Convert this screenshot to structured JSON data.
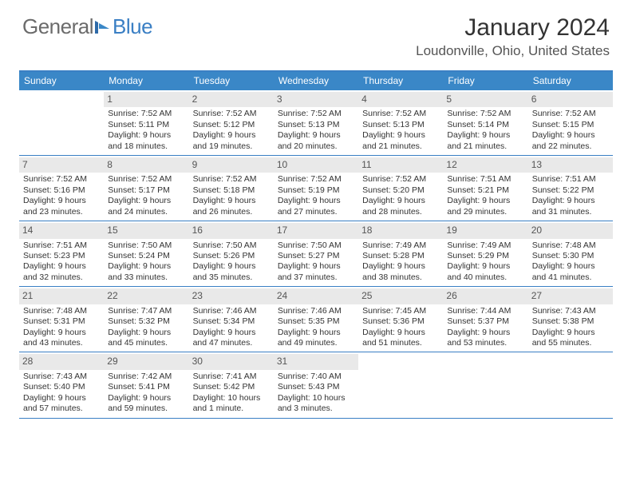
{
  "brand": {
    "part1": "General",
    "part2": "Blue"
  },
  "title": "January 2024",
  "location": "Loudonville, Ohio, United States",
  "colors": {
    "header_bar": "#3a87c7",
    "border": "#3a7fc4",
    "daynum_bg": "#e9e9e9",
    "text": "#333333",
    "logo_gray": "#6b6b6b",
    "logo_blue": "#3a7fc4"
  },
  "weekdays": [
    "Sunday",
    "Monday",
    "Tuesday",
    "Wednesday",
    "Thursday",
    "Friday",
    "Saturday"
  ],
  "weeks": [
    [
      {
        "n": "",
        "sr": "",
        "ss": "",
        "dl": ""
      },
      {
        "n": "1",
        "sr": "Sunrise: 7:52 AM",
        "ss": "Sunset: 5:11 PM",
        "dl": "Daylight: 9 hours and 18 minutes."
      },
      {
        "n": "2",
        "sr": "Sunrise: 7:52 AM",
        "ss": "Sunset: 5:12 PM",
        "dl": "Daylight: 9 hours and 19 minutes."
      },
      {
        "n": "3",
        "sr": "Sunrise: 7:52 AM",
        "ss": "Sunset: 5:13 PM",
        "dl": "Daylight: 9 hours and 20 minutes."
      },
      {
        "n": "4",
        "sr": "Sunrise: 7:52 AM",
        "ss": "Sunset: 5:13 PM",
        "dl": "Daylight: 9 hours and 21 minutes."
      },
      {
        "n": "5",
        "sr": "Sunrise: 7:52 AM",
        "ss": "Sunset: 5:14 PM",
        "dl": "Daylight: 9 hours and 21 minutes."
      },
      {
        "n": "6",
        "sr": "Sunrise: 7:52 AM",
        "ss": "Sunset: 5:15 PM",
        "dl": "Daylight: 9 hours and 22 minutes."
      }
    ],
    [
      {
        "n": "7",
        "sr": "Sunrise: 7:52 AM",
        "ss": "Sunset: 5:16 PM",
        "dl": "Daylight: 9 hours and 23 minutes."
      },
      {
        "n": "8",
        "sr": "Sunrise: 7:52 AM",
        "ss": "Sunset: 5:17 PM",
        "dl": "Daylight: 9 hours and 24 minutes."
      },
      {
        "n": "9",
        "sr": "Sunrise: 7:52 AM",
        "ss": "Sunset: 5:18 PM",
        "dl": "Daylight: 9 hours and 26 minutes."
      },
      {
        "n": "10",
        "sr": "Sunrise: 7:52 AM",
        "ss": "Sunset: 5:19 PM",
        "dl": "Daylight: 9 hours and 27 minutes."
      },
      {
        "n": "11",
        "sr": "Sunrise: 7:52 AM",
        "ss": "Sunset: 5:20 PM",
        "dl": "Daylight: 9 hours and 28 minutes."
      },
      {
        "n": "12",
        "sr": "Sunrise: 7:51 AM",
        "ss": "Sunset: 5:21 PM",
        "dl": "Daylight: 9 hours and 29 minutes."
      },
      {
        "n": "13",
        "sr": "Sunrise: 7:51 AM",
        "ss": "Sunset: 5:22 PM",
        "dl": "Daylight: 9 hours and 31 minutes."
      }
    ],
    [
      {
        "n": "14",
        "sr": "Sunrise: 7:51 AM",
        "ss": "Sunset: 5:23 PM",
        "dl": "Daylight: 9 hours and 32 minutes."
      },
      {
        "n": "15",
        "sr": "Sunrise: 7:50 AM",
        "ss": "Sunset: 5:24 PM",
        "dl": "Daylight: 9 hours and 33 minutes."
      },
      {
        "n": "16",
        "sr": "Sunrise: 7:50 AM",
        "ss": "Sunset: 5:26 PM",
        "dl": "Daylight: 9 hours and 35 minutes."
      },
      {
        "n": "17",
        "sr": "Sunrise: 7:50 AM",
        "ss": "Sunset: 5:27 PM",
        "dl": "Daylight: 9 hours and 37 minutes."
      },
      {
        "n": "18",
        "sr": "Sunrise: 7:49 AM",
        "ss": "Sunset: 5:28 PM",
        "dl": "Daylight: 9 hours and 38 minutes."
      },
      {
        "n": "19",
        "sr": "Sunrise: 7:49 AM",
        "ss": "Sunset: 5:29 PM",
        "dl": "Daylight: 9 hours and 40 minutes."
      },
      {
        "n": "20",
        "sr": "Sunrise: 7:48 AM",
        "ss": "Sunset: 5:30 PM",
        "dl": "Daylight: 9 hours and 41 minutes."
      }
    ],
    [
      {
        "n": "21",
        "sr": "Sunrise: 7:48 AM",
        "ss": "Sunset: 5:31 PM",
        "dl": "Daylight: 9 hours and 43 minutes."
      },
      {
        "n": "22",
        "sr": "Sunrise: 7:47 AM",
        "ss": "Sunset: 5:32 PM",
        "dl": "Daylight: 9 hours and 45 minutes."
      },
      {
        "n": "23",
        "sr": "Sunrise: 7:46 AM",
        "ss": "Sunset: 5:34 PM",
        "dl": "Daylight: 9 hours and 47 minutes."
      },
      {
        "n": "24",
        "sr": "Sunrise: 7:46 AM",
        "ss": "Sunset: 5:35 PM",
        "dl": "Daylight: 9 hours and 49 minutes."
      },
      {
        "n": "25",
        "sr": "Sunrise: 7:45 AM",
        "ss": "Sunset: 5:36 PM",
        "dl": "Daylight: 9 hours and 51 minutes."
      },
      {
        "n": "26",
        "sr": "Sunrise: 7:44 AM",
        "ss": "Sunset: 5:37 PM",
        "dl": "Daylight: 9 hours and 53 minutes."
      },
      {
        "n": "27",
        "sr": "Sunrise: 7:43 AM",
        "ss": "Sunset: 5:38 PM",
        "dl": "Daylight: 9 hours and 55 minutes."
      }
    ],
    [
      {
        "n": "28",
        "sr": "Sunrise: 7:43 AM",
        "ss": "Sunset: 5:40 PM",
        "dl": "Daylight: 9 hours and 57 minutes."
      },
      {
        "n": "29",
        "sr": "Sunrise: 7:42 AM",
        "ss": "Sunset: 5:41 PM",
        "dl": "Daylight: 9 hours and 59 minutes."
      },
      {
        "n": "30",
        "sr": "Sunrise: 7:41 AM",
        "ss": "Sunset: 5:42 PM",
        "dl": "Daylight: 10 hours and 1 minute."
      },
      {
        "n": "31",
        "sr": "Sunrise: 7:40 AM",
        "ss": "Sunset: 5:43 PM",
        "dl": "Daylight: 10 hours and 3 minutes."
      },
      {
        "n": "",
        "sr": "",
        "ss": "",
        "dl": ""
      },
      {
        "n": "",
        "sr": "",
        "ss": "",
        "dl": ""
      },
      {
        "n": "",
        "sr": "",
        "ss": "",
        "dl": ""
      }
    ]
  ]
}
